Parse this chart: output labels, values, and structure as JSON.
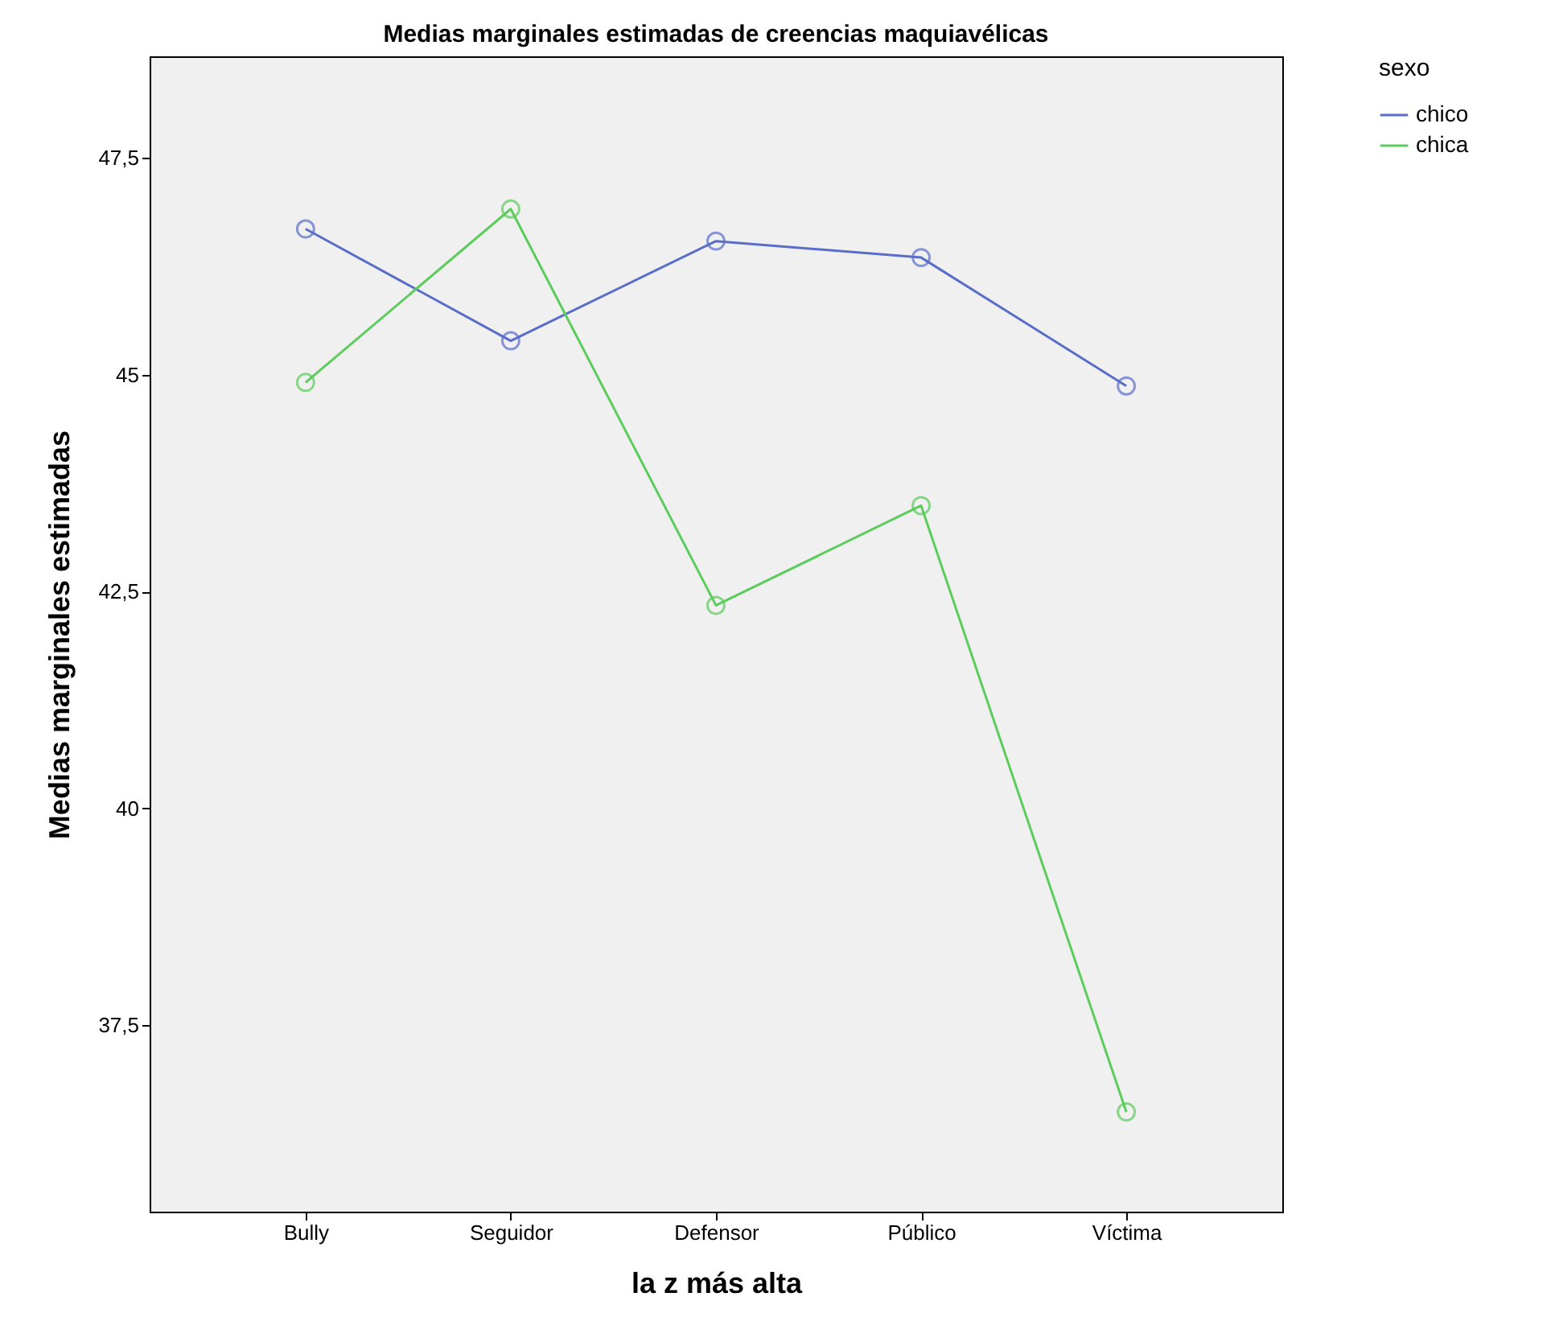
{
  "chart_data": {
    "type": "line",
    "title": "Medias marginales estimadas de creencias maquiavélicas",
    "xlabel": "la z más alta",
    "ylabel": "Medias marginales estimadas",
    "legend_title": "sexo",
    "categories": [
      "Bully",
      "Seguidor",
      "Defensor",
      "Público",
      "Víctima"
    ],
    "series": [
      {
        "name": "chico",
        "color": "#5a6ec8",
        "values": [
          46.68,
          45.39,
          46.54,
          46.35,
          44.87
        ]
      },
      {
        "name": "chica",
        "color": "#5ccc5c",
        "values": [
          44.91,
          46.91,
          42.34,
          43.49,
          36.5
        ]
      }
    ],
    "ylim": [
      35.35,
      48.67
    ],
    "yticks": [
      {
        "value": 37.5,
        "label": "37,5"
      },
      40,
      {
        "value": 42.5,
        "label": "42,5"
      },
      45,
      {
        "value": 47.5,
        "label": "47,5"
      }
    ],
    "marker": "circle",
    "line_style": "solid",
    "legend": "right",
    "grid": false
  }
}
